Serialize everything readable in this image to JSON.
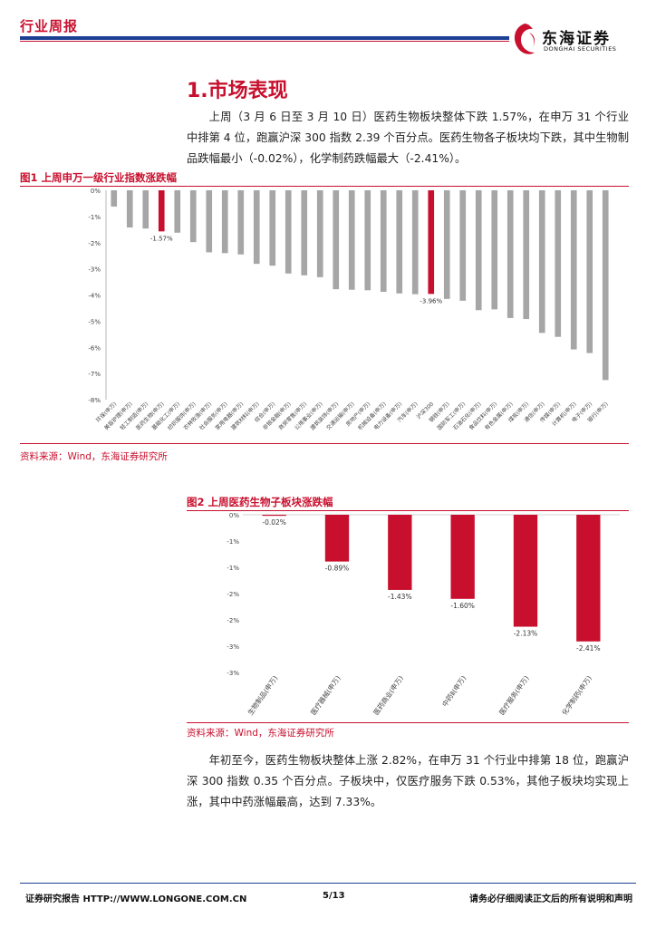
{
  "header": {
    "tag": "行业周报",
    "logo_cn": "东海证券",
    "logo_en": "DONGHAI SECURITIES"
  },
  "section": {
    "title": "1.市场表现"
  },
  "paragraphs": {
    "p1": "上周（3 月 6 日至 3 月 10 日）医药生物板块整体下跌 1.57%，在申万 31 个行业中排第 4 位，跑赢沪深 300 指数 2.39 个百分点。医药生物各子板块均下跌，其中生物制品跌幅最小（-0.02%），化学制药跌幅最大（-2.41%）。",
    "p2": "年初至今，医药生物板块整体上涨 2.82%，在申万 31 个行业中排第 18 位，跑赢沪深 300 指数 0.35 个百分点。子板块中，仅医疗服务下跌 0.53%，其他子板块均实现上涨，其中中药涨幅最高，达到 7.33%。"
  },
  "figures": {
    "fig1": {
      "title": "图1  上周申万一级行业指数涨跌幅",
      "source": "资料来源：Wind，东海证券研究所"
    },
    "fig2": {
      "title": "图2  上周医药生物子板块涨跌幅",
      "source": "资料来源：Wind，东海证券研究所"
    }
  },
  "chart_data": [
    {
      "type": "bar",
      "title": "图1  上周申万一级行业指数涨跌幅",
      "y_ticks": [
        "0%",
        "-1%",
        "-2%",
        "-3%",
        "-4%",
        "-5%",
        "-6%",
        "-7%",
        "-8%"
      ],
      "ylim": [
        -8,
        0
      ],
      "categories": [
        "环保(申万)",
        "美容护理(申万)",
        "轻工制造(申万)",
        "医药生物(申万)",
        "基础化工(申万)",
        "纺织服饰(申万)",
        "农林牧渔(申万)",
        "社会服务(申万)",
        "家用电器(申万)",
        "建筑材料(申万)",
        "综合(申万)",
        "非银金融(申万)",
        "商贸零售(申万)",
        "公用事业(申万)",
        "建筑装饰(申万)",
        "交通运输(申万)",
        "房地产(申万)",
        "机械设备(申万)",
        "电力设备(申万)",
        "汽车(申万)",
        "沪深300",
        "钢铁(申万)",
        "国防军工(申万)",
        "石油石化(申万)",
        "食品饮料(申万)",
        "有色金属(申万)",
        "煤炭(申万)",
        "通信(申万)",
        "传媒(申万)",
        "计算机(申万)",
        "电子(申万)",
        "银行(申万)"
      ],
      "values": [
        -0.62,
        -1.42,
        -1.46,
        -1.57,
        -1.62,
        -1.98,
        -2.37,
        -2.4,
        -2.45,
        -2.81,
        -2.88,
        -3.18,
        -3.25,
        -3.32,
        -3.78,
        -3.8,
        -3.82,
        -3.88,
        -3.94,
        -3.97,
        -3.96,
        -4.15,
        -4.22,
        -4.58,
        -4.55,
        -4.88,
        -4.92,
        -5.45,
        -5.6,
        -6.08,
        -6.22,
        -7.25
      ],
      "highlight": [
        "医药生物(申万)",
        "沪深300"
      ],
      "data_labels": {
        "医药生物(申万)": "-1.57%",
        "沪深300": "-3.96%"
      },
      "colors": {
        "bar": "#a6a6a6",
        "highlight": "#c8102e"
      }
    },
    {
      "type": "bar",
      "title": "图2  上周医药生物子板块涨跌幅",
      "y_ticks": [
        "0%",
        "-1%",
        "-1%",
        "-2%",
        "-2%",
        "-3%",
        "-3%"
      ],
      "ylim": [
        -3,
        0
      ],
      "categories": [
        "生物制品(申万)",
        "医疗器械(申万)",
        "医药商业(申万)",
        "中药Ⅱ(申万)",
        "医疗服务(申万)",
        "化学制药(申万)"
      ],
      "values": [
        -0.02,
        -0.89,
        -1.43,
        -1.6,
        -2.13,
        -2.41
      ],
      "data_labels": [
        "-0.02%",
        "-0.89%",
        "-1.43%",
        "-1.60%",
        "-2.13%",
        "-2.41%"
      ],
      "colors": {
        "bar": "#c8102e"
      }
    }
  ],
  "footer": {
    "left": "证券研究报告    HTTP://WWW.LONGONE.COM.CN",
    "page": "5/13",
    "right": "请务必仔细阅读正文后的所有说明和声明"
  }
}
